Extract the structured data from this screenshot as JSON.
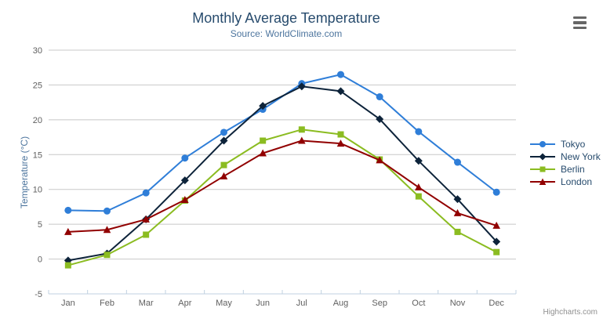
{
  "header": {
    "title": "Monthly Average Temperature",
    "subtitle": "Source: WorldClimate.com"
  },
  "credits": {
    "label": "Highcharts.com"
  },
  "context_menu": {
    "icon": "hamburger-icon"
  },
  "chart_data": {
    "type": "line",
    "categories": [
      "Jan",
      "Feb",
      "Mar",
      "Apr",
      "May",
      "Jun",
      "Jul",
      "Aug",
      "Sep",
      "Oct",
      "Nov",
      "Dec"
    ],
    "series": [
      {
        "name": "Tokyo",
        "color": "#2f7ed8",
        "marker": "circle",
        "values": [
          7.0,
          6.9,
          9.5,
          14.5,
          18.2,
          21.5,
          25.2,
          26.5,
          23.3,
          18.3,
          13.9,
          9.6
        ]
      },
      {
        "name": "New York",
        "color": "#0d233a",
        "marker": "diamond",
        "values": [
          -0.2,
          0.8,
          5.7,
          11.3,
          17.0,
          22.0,
          24.8,
          24.1,
          20.1,
          14.1,
          8.6,
          2.5
        ]
      },
      {
        "name": "Berlin",
        "color": "#8bbc21",
        "marker": "square",
        "values": [
          -0.9,
          0.6,
          3.5,
          8.4,
          13.5,
          17.0,
          18.6,
          17.9,
          14.3,
          9.0,
          3.9,
          1.0
        ]
      },
      {
        "name": "London",
        "color": "#910000",
        "marker": "triangle",
        "values": [
          3.9,
          4.2,
          5.7,
          8.5,
          11.9,
          15.2,
          17.0,
          16.6,
          14.2,
          10.3,
          6.6,
          4.8
        ]
      }
    ],
    "title": "Monthly Average Temperature",
    "subtitle": "Source: WorldClimate.com",
    "xlabel": "",
    "ylabel": "Temperature (°C)",
    "ylim": [
      -5,
      30
    ],
    "yticks": [
      -5,
      0,
      5,
      10,
      15,
      20,
      25,
      30
    ],
    "grid": true,
    "legend_position": "right"
  },
  "colors": {
    "title": "#274b6d",
    "subtitle": "#4d759e",
    "axis_title": "#4d759e",
    "tick_label": "#606060",
    "grid": "#C8C8C8",
    "axis_line": "#C0D0E0",
    "legend_text": "#274b6d",
    "credits": "#909090"
  }
}
